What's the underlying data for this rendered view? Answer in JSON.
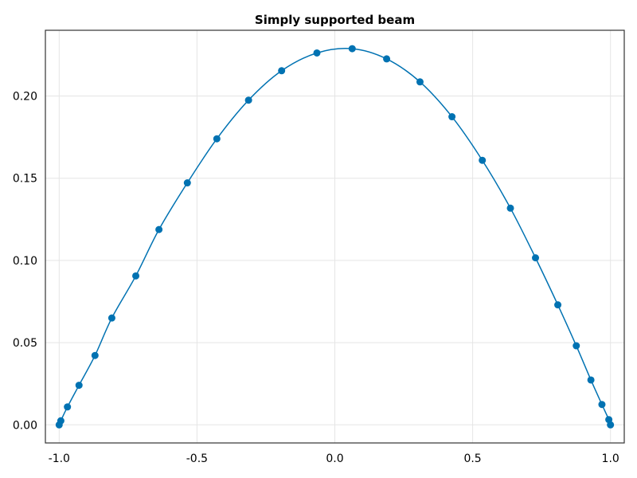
{
  "chart_data": {
    "type": "line",
    "title": "Simply supported beam",
    "xlabel": "",
    "ylabel": "",
    "xlim": [
      -1.05,
      1.05
    ],
    "ylim": [
      -0.011,
      0.24
    ],
    "grid": true,
    "x_ticks": [
      -1.0,
      -0.5,
      0.0,
      0.5,
      1.0
    ],
    "x_tick_labels": [
      "-1.0",
      "-0.5",
      "0.0",
      "0.5",
      "1.0"
    ],
    "y_ticks": [
      0.0,
      0.05,
      0.1,
      0.15,
      0.2
    ],
    "y_tick_labels": [
      "0.00",
      "0.05",
      "0.10",
      "0.15",
      "0.20"
    ],
    "colors": {
      "series": "#0072b2",
      "grid": "#e5e5e5",
      "frame": "#333333"
    },
    "series": [
      {
        "style": "line+markers",
        "points": [
          [
            -1.0,
            0.0
          ],
          [
            -0.994,
            0.0025
          ],
          [
            -0.97,
            0.0109
          ],
          [
            -0.928,
            0.0241
          ],
          [
            -0.87,
            0.0422
          ],
          [
            -0.809,
            0.065
          ],
          [
            -0.722,
            0.0906
          ],
          [
            -0.638,
            0.1188
          ],
          [
            -0.535,
            0.1472
          ],
          [
            -0.428,
            0.174
          ],
          [
            -0.313,
            0.1975
          ],
          [
            -0.193,
            0.2154
          ],
          [
            -0.065,
            0.2262
          ],
          [
            0.063,
            0.2288
          ],
          [
            0.188,
            0.2226
          ],
          [
            0.309,
            0.2086
          ],
          [
            0.425,
            0.1874
          ],
          [
            0.535,
            0.1609
          ],
          [
            0.637,
            0.1318
          ],
          [
            0.728,
            0.1016
          ],
          [
            0.809,
            0.073
          ],
          [
            0.876,
            0.0481
          ],
          [
            0.929,
            0.0273
          ],
          [
            0.969,
            0.0124
          ],
          [
            0.994,
            0.0032
          ],
          [
            1.0,
            0.0
          ]
        ]
      }
    ]
  }
}
